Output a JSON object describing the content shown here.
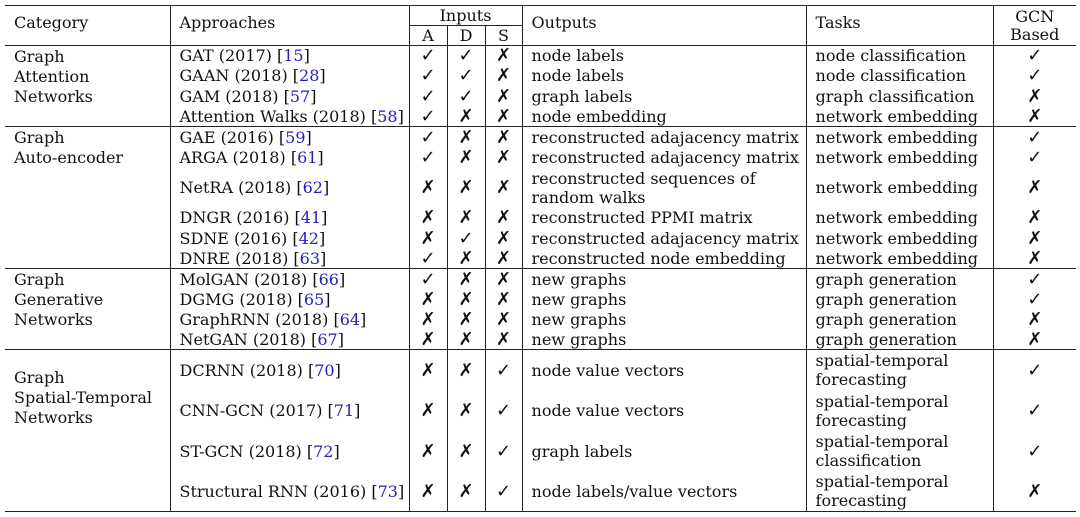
{
  "headers": {
    "category": "Category",
    "approaches": "Approaches",
    "inputs": "Inputs",
    "input_a": "A",
    "input_d": "D",
    "input_s": "S",
    "outputs": "Outputs",
    "tasks": "Tasks",
    "gcn_based_line1": "GCN",
    "gcn_based_line2": "Based"
  },
  "marks": {
    "check": "✓",
    "cross": "✗"
  },
  "groups": [
    {
      "category_line1": "Graph",
      "category_line2": "Attention",
      "category_line3": "Networks",
      "rows": [
        {
          "name": "GAT (2017)",
          "ref": "15",
          "a": "✓",
          "d": "✓",
          "s": "✗",
          "output": "node labels",
          "task": "node classification",
          "gcn": "✓"
        },
        {
          "name": "GAAN (2018)",
          "ref": "28",
          "a": "✓",
          "d": "✓",
          "s": "✗",
          "output": "node labels",
          "task": "node classification",
          "gcn": "✓"
        },
        {
          "name": "GAM (2018)",
          "ref": "57",
          "a": "✓",
          "d": "✓",
          "s": "✗",
          "output": "graph labels",
          "task": "graph classification",
          "gcn": "✗"
        },
        {
          "name": "Attention Walks (2018)",
          "ref": "58",
          "a": "✓",
          "d": "✗",
          "s": "✗",
          "output": "node embedding",
          "task": "network embedding",
          "gcn": "✗"
        }
      ]
    },
    {
      "category_line1": "Graph",
      "category_line2": "Auto-encoder",
      "category_line3": "",
      "rows": [
        {
          "name": "GAE (2016)",
          "ref": "59",
          "a": "✓",
          "d": "✗",
          "s": "✗",
          "output": "reconstructed adajacency matrix",
          "task": "network embedding",
          "gcn": "✓"
        },
        {
          "name": "ARGA (2018)",
          "ref": "61",
          "a": "✓",
          "d": "✗",
          "s": "✗",
          "output": "reconstructed adajacency matrix",
          "task": "network embedding",
          "gcn": "✓"
        },
        {
          "name": "NetRA (2018)",
          "ref": "62",
          "a": "✗",
          "d": "✗",
          "s": "✗",
          "output": "reconstructed sequences of",
          "output2": "random walks",
          "task": "network embedding",
          "gcn": "✗"
        },
        {
          "name": "DNGR (2016)",
          "ref": "41",
          "a": "✗",
          "d": "✗",
          "s": "✗",
          "output": "reconstructed PPMI matrix",
          "task": "network embedding",
          "gcn": "✗"
        },
        {
          "name": "SDNE (2016)",
          "ref": "42",
          "a": "✗",
          "d": "✓",
          "s": "✗",
          "output": "reconstructed adajacency matrix",
          "task": "network embedding",
          "gcn": "✗"
        },
        {
          "name": "DNRE (2018)",
          "ref": "63",
          "a": "✓",
          "d": "✗",
          "s": "✗",
          "output": "reconstructed node embedding",
          "task": "network embedding",
          "gcn": "✗"
        }
      ]
    },
    {
      "category_line1": "Graph",
      "category_line2": "Generative",
      "category_line3": "Networks",
      "rows": [
        {
          "name": "MolGAN (2018)",
          "ref": "66",
          "a": "✓",
          "d": "✗",
          "s": "✗",
          "output": "new graphs",
          "task": "graph generation",
          "gcn": "✓"
        },
        {
          "name": "DGMG (2018)",
          "ref": "65",
          "a": "✗",
          "d": "✗",
          "s": "✗",
          "output": "new graphs",
          "task": "graph generation",
          "gcn": "✓"
        },
        {
          "name": "GraphRNN (2018)",
          "ref": "64",
          "a": "✗",
          "d": "✗",
          "s": "✗",
          "output": "new graphs",
          "task": "graph generation",
          "gcn": "✗"
        },
        {
          "name": "NetGAN (2018)",
          "ref": "67",
          "a": "✗",
          "d": "✗",
          "s": "✗",
          "output": "new graphs",
          "task": "graph generation",
          "gcn": "✗"
        }
      ]
    },
    {
      "category_line1": "Graph",
      "category_line2": "Spatial-Temporal",
      "category_line3": "Networks",
      "rows": [
        {
          "name": "DCRNN (2018)",
          "ref": "70",
          "a": "✗",
          "d": "✗",
          "s": "✓",
          "output": "node value vectors",
          "task": "spatial-temporal",
          "task2": "forecasting",
          "gcn": "✓"
        },
        {
          "name": "CNN-GCN (2017)",
          "ref": "71",
          "a": "✗",
          "d": "✗",
          "s": "✓",
          "output": "node value vectors",
          "task": "spatial-temporal",
          "task2": "forecasting",
          "gcn": "✓"
        },
        {
          "name": "ST-GCN (2018)",
          "ref": "72",
          "a": "✗",
          "d": "✗",
          "s": "✓",
          "output": "graph labels",
          "task": "spatial-temporal",
          "task2": "classification",
          "gcn": "✓"
        },
        {
          "name": "Structural RNN (2016)",
          "ref": "73",
          "a": "✗",
          "d": "✗",
          "s": "✓",
          "output": "node labels/value vectors",
          "task": "spatial-temporal",
          "task2": "forecasting",
          "gcn": "✗"
        }
      ]
    }
  ]
}
